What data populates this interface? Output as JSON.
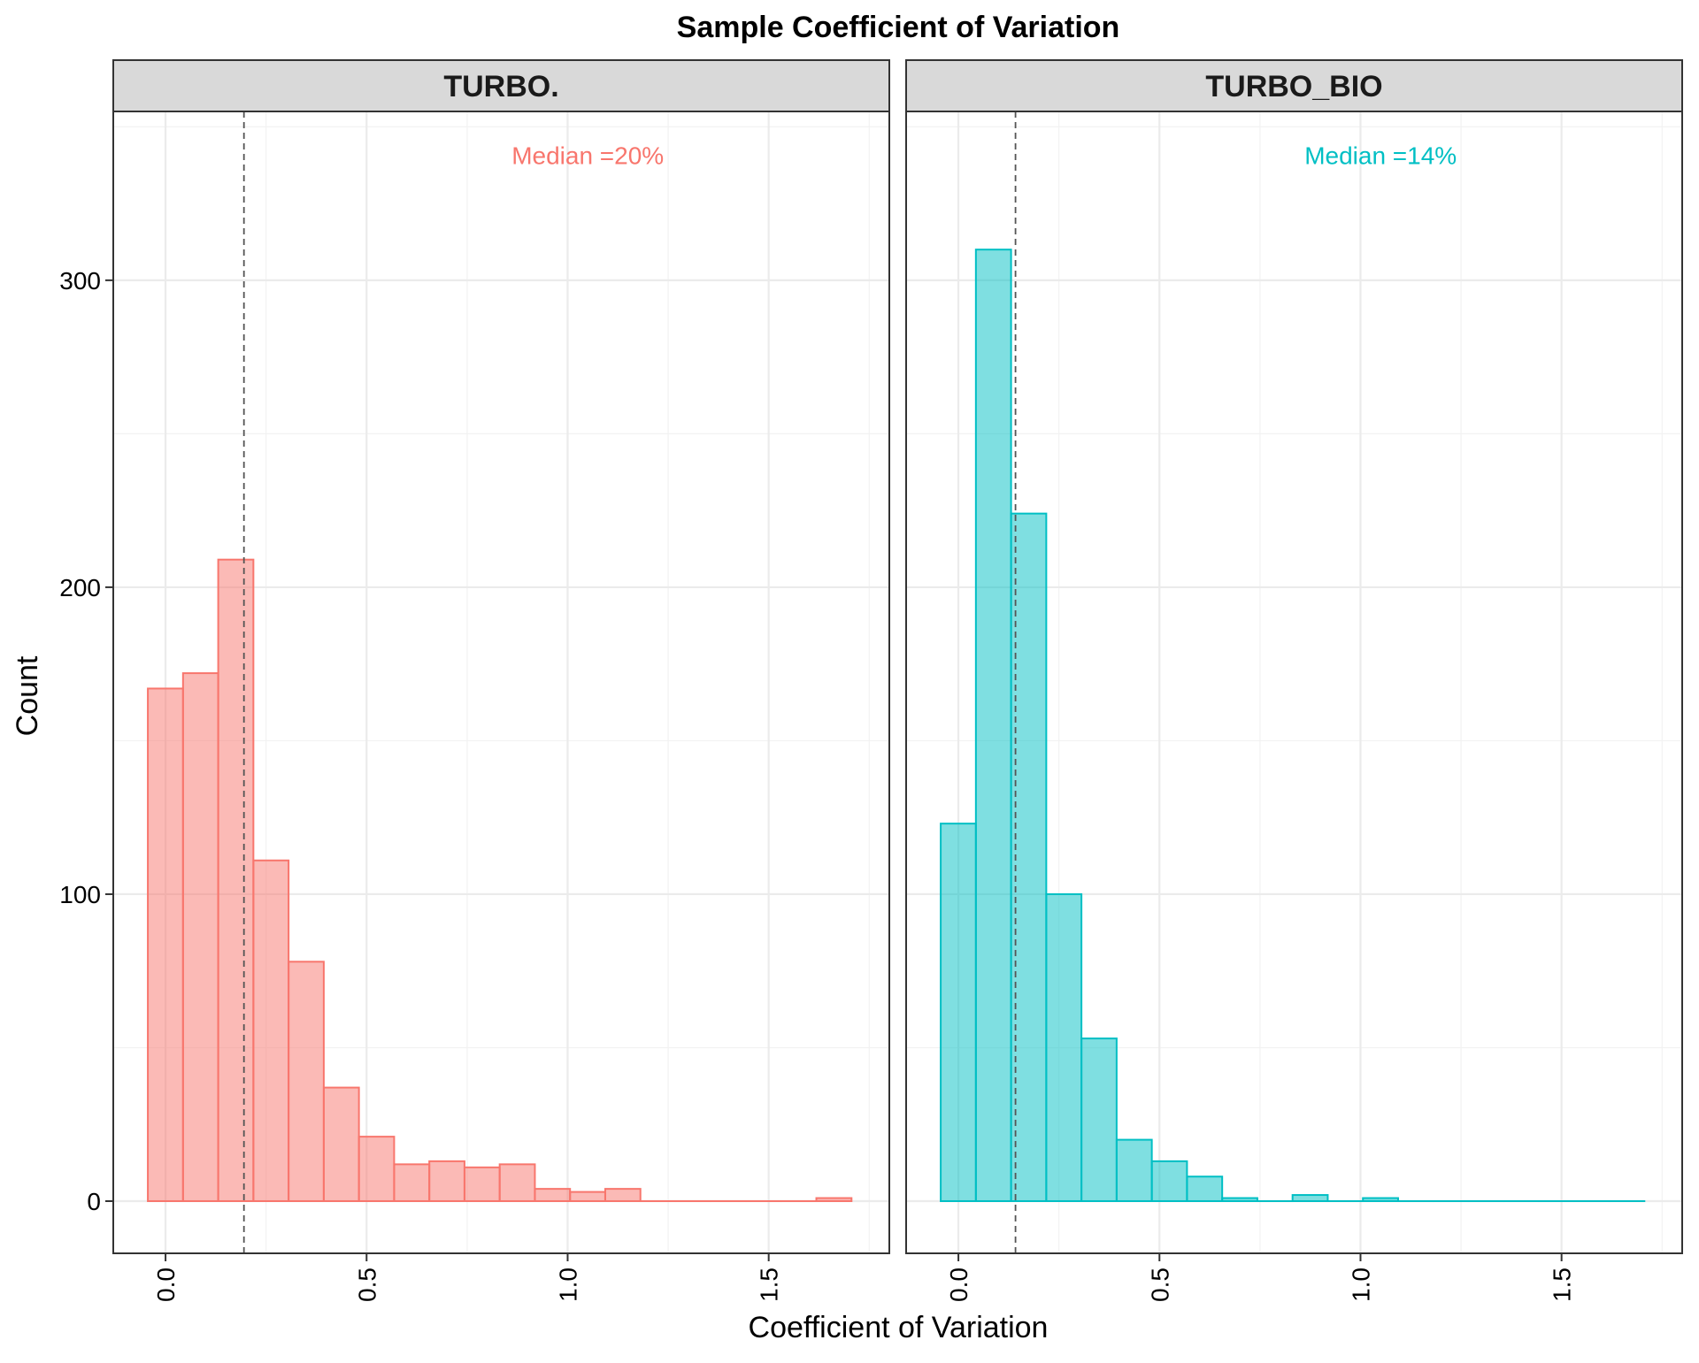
{
  "chart_data": {
    "type": "bar",
    "title": "Sample Coefficient of Variation",
    "xlabel": "Coefficient of Variation",
    "ylabel": "Count",
    "xlim": [
      -0.13,
      1.8
    ],
    "ylim": [
      -17,
      355
    ],
    "x_ticks": [
      0.0,
      0.5,
      1.0,
      1.5
    ],
    "x_tick_labels": [
      "0.0",
      "0.5",
      "1.0",
      "1.5"
    ],
    "y_ticks": [
      0,
      100,
      200,
      300
    ],
    "y_tick_labels": [
      "0",
      "100",
      "200",
      "300"
    ],
    "grid": true,
    "bin_width": 0.0875,
    "bin_start": -0.044,
    "panels": [
      {
        "strip": "TURBO.",
        "fill": "#F8766D",
        "median": 0.195,
        "annotation": "Median =20%",
        "counts": [
          167,
          172,
          209,
          111,
          78,
          37,
          21,
          12,
          13,
          11,
          12,
          4,
          3,
          4,
          0,
          0,
          0,
          0,
          0,
          1
        ]
      },
      {
        "strip": "TURBO_BIO",
        "fill": "#00BFC4",
        "median": 0.142,
        "annotation": "Median =14%",
        "counts": [
          123,
          310,
          224,
          100,
          53,
          20,
          13,
          8,
          1,
          0,
          2,
          0,
          1,
          0,
          0,
          0,
          0,
          0,
          0,
          0
        ]
      }
    ]
  }
}
